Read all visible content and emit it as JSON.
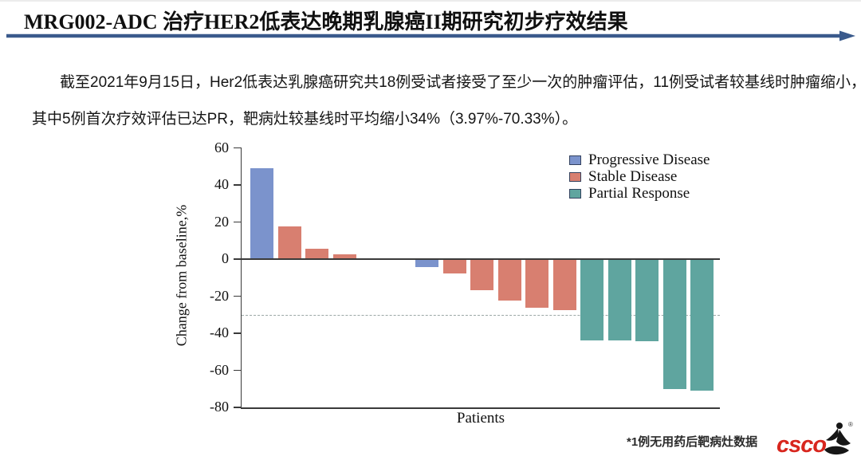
{
  "slide": {
    "title": "MRG002-ADC 治疗HER2低表达晚期乳腺癌II期研究初步疗效结果",
    "accent_color": "#3A5A8C"
  },
  "body": {
    "line1": "截至2021年9月15日，Her2低表达乳腺癌研究共18例受试者接受了至少一次的肿瘤评估，11例受试者较基线时肿瘤缩小，",
    "line2": "其中5例首次疗效评估已达PR，靶病灶较基线时平均缩小34%（3.97%-70.33%）。"
  },
  "chart_data": {
    "type": "bar",
    "subtype": "waterfall",
    "title": "",
    "xlabel": "Patients",
    "ylabel": "Change from baseline,%",
    "ylim": [
      -80,
      60
    ],
    "yticks": [
      60,
      40,
      20,
      0,
      -20,
      -40,
      -60,
      -80
    ],
    "reference_line": -30,
    "grid": false,
    "legend_position": "top-right",
    "legend": [
      {
        "key": "PD",
        "label": "Progressive Disease",
        "color": "#7B93CC"
      },
      {
        "key": "SD",
        "label": "Stable Disease",
        "color": "#D87F70"
      },
      {
        "key": "PR",
        "label": "Partial Response",
        "color": "#5FA59F"
      }
    ],
    "x_unit": "patient",
    "values": [
      48.5,
      17,
      5,
      2.3,
      0,
      0,
      -4,
      -7.5,
      -16.5,
      -22,
      -26,
      -27,
      -43.5,
      -43.5,
      -44,
      -69.5,
      -70.33
    ],
    "bar_categories": [
      "PD",
      "SD",
      "SD",
      "SD",
      null,
      null,
      "PD",
      "SD",
      "SD",
      "SD",
      "SD",
      "SD",
      "PR",
      "PR",
      "PR",
      "PR",
      "PR"
    ],
    "axis_color": "#3a3a3a",
    "reference_line_style": "dashed gray"
  },
  "footnote": "*1例无用药后靶病灶数据",
  "logo": {
    "text": "csco",
    "color": "#D8261E",
    "registered": "®"
  }
}
